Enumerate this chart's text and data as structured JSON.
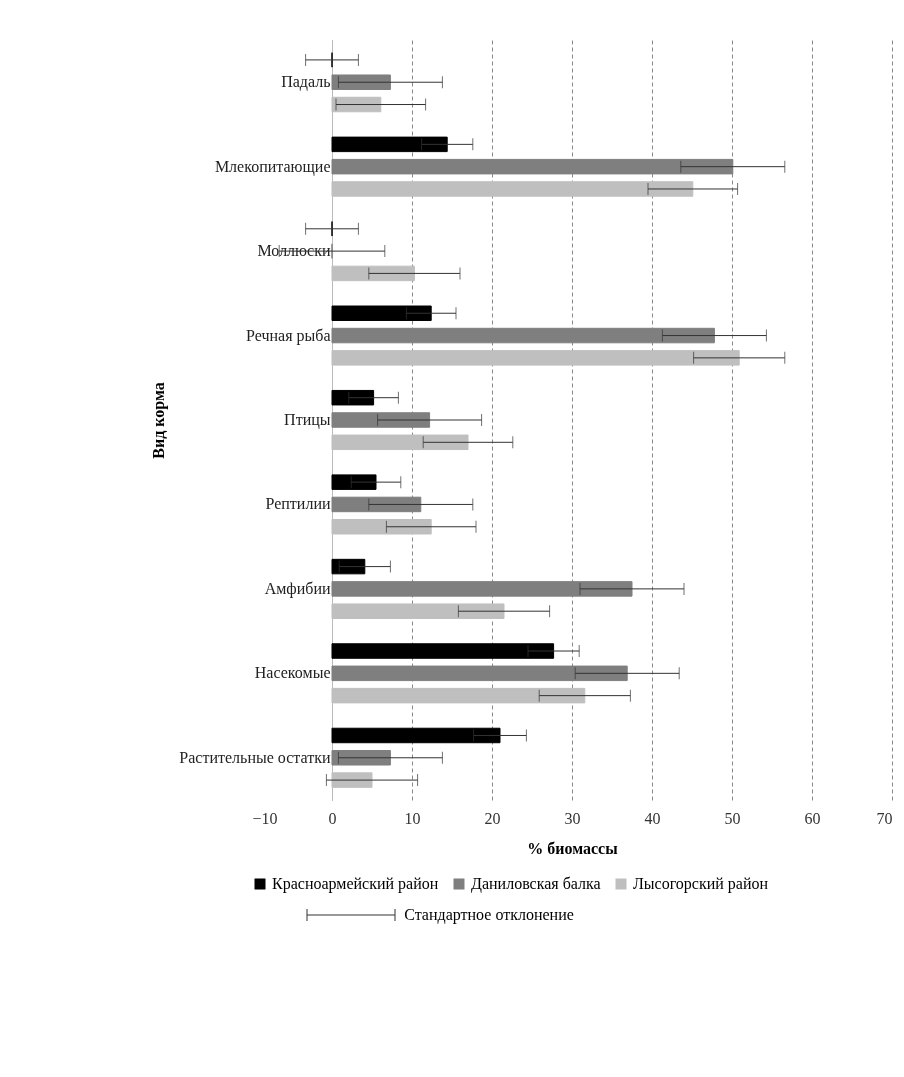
{
  "chart_data": {
    "type": "bar",
    "orientation": "horizontal",
    "xlabel": "% биомассы",
    "ylabel": "Вид корма",
    "categories": [
      "Падаль",
      "Млекопитающие",
      "Моллюски",
      "Речная рыба",
      "Птицы",
      "Рептилии",
      "Амфибии",
      "Насекомые",
      "Растительные остатки"
    ],
    "series": [
      {
        "name": "Красноармейский район",
        "color": "#000000",
        "values": [
          0,
          14.4,
          0,
          12.4,
          5.2,
          5.5,
          4.1,
          27.7,
          21.0
        ],
        "errors": [
          3.3,
          3.2,
          3.3,
          3.1,
          3.1,
          3.1,
          3.2,
          3.2,
          3.3
        ]
      },
      {
        "name": "Даниловская балка",
        "color": "#7f7f7f",
        "values": [
          7.3,
          50.1,
          0,
          47.8,
          12.2,
          11.1,
          37.5,
          36.9,
          7.3
        ],
        "errors": [
          6.5,
          6.5,
          6.6,
          6.5,
          6.5,
          6.5,
          6.5,
          6.5,
          6.5
        ]
      },
      {
        "name": "Лысогорский район",
        "color": "#bfbfbf",
        "values": [
          6.1,
          45.1,
          10.3,
          50.9,
          17.0,
          12.4,
          21.5,
          31.6,
          5.0
        ],
        "errors": [
          5.6,
          5.6,
          5.7,
          5.7,
          5.6,
          5.6,
          5.7,
          5.7,
          5.7
        ]
      }
    ],
    "xlim": [
      -10,
      70
    ],
    "xticks": [
      -10,
      0,
      10,
      20,
      30,
      40,
      50,
      60,
      70
    ],
    "grid": "x",
    "legend": "bottom",
    "annotations": [
      "Стандартное отклонение"
    ]
  }
}
